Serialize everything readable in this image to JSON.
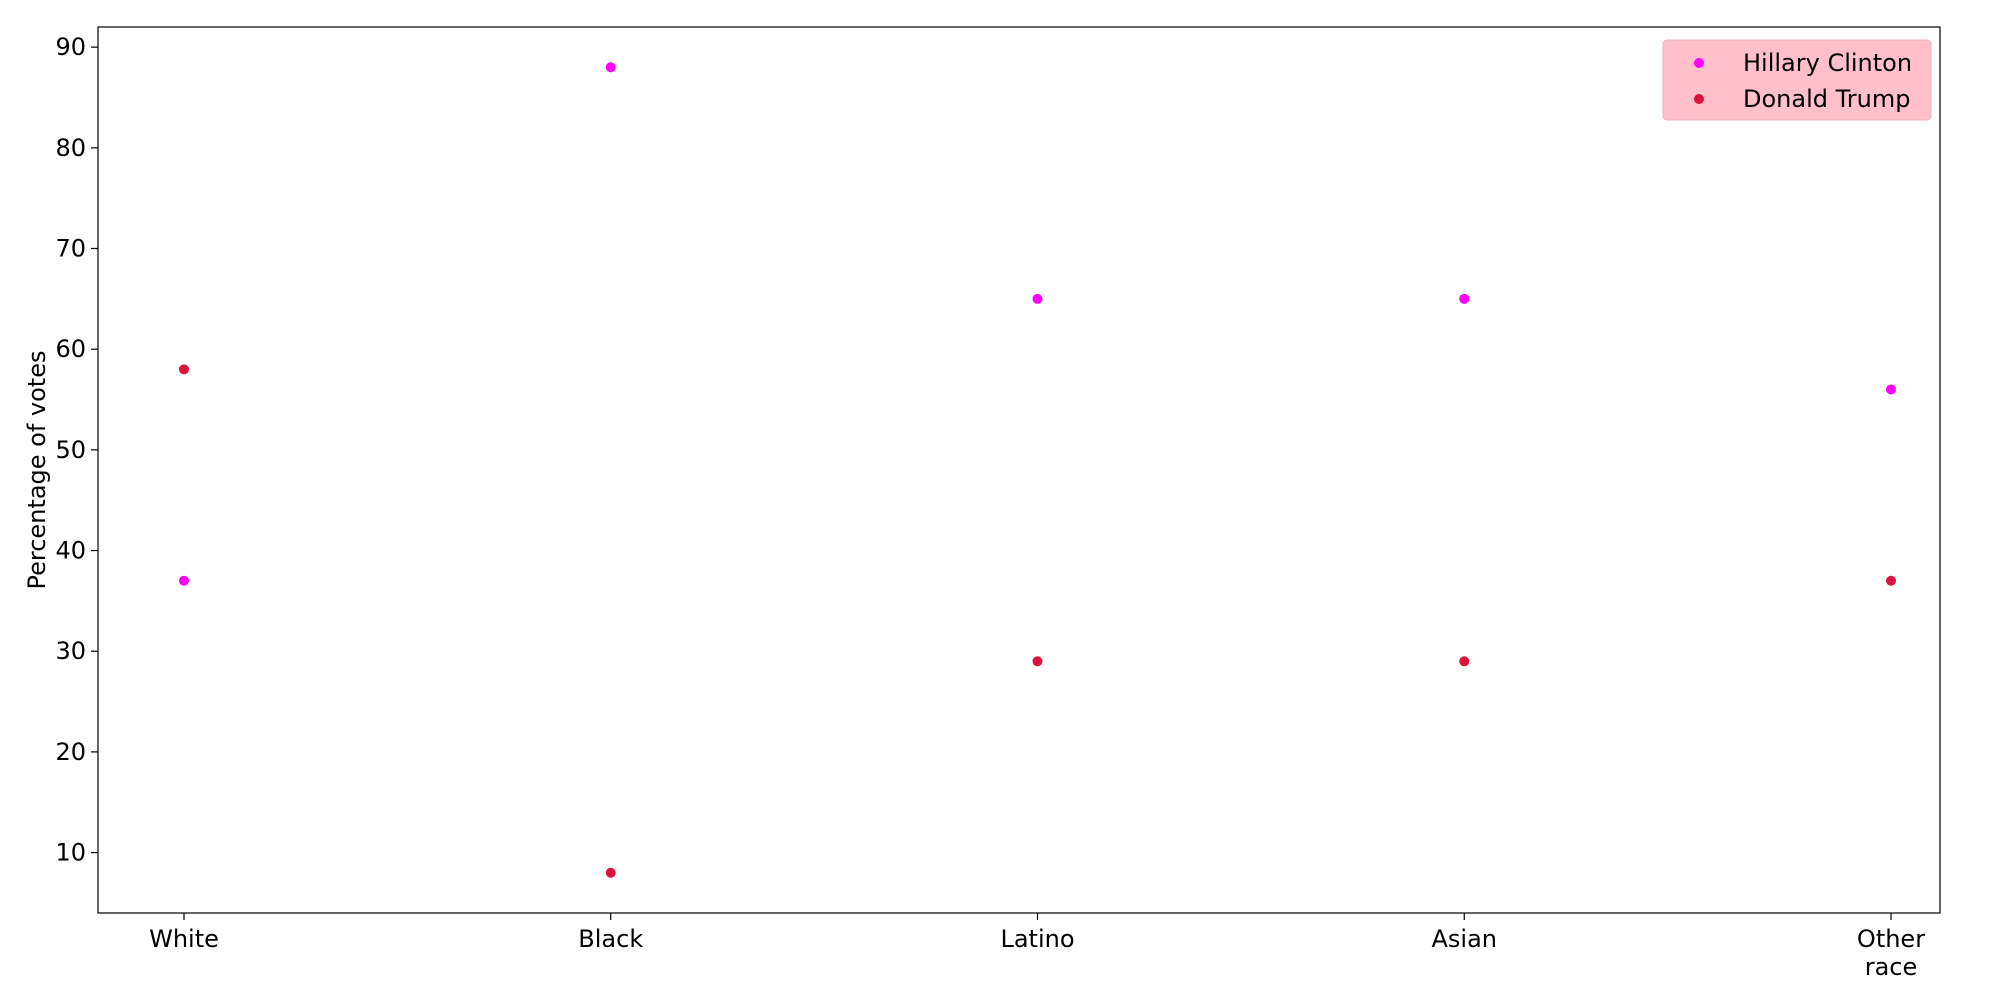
{
  "chart_data": {
    "type": "scatter",
    "categories": [
      "White",
      "Black",
      "Latino",
      "Asian",
      "Other race"
    ],
    "series": [
      {
        "name": "Hillary Clinton",
        "color": "#ff00ff",
        "values": [
          37,
          88,
          65,
          65,
          56
        ]
      },
      {
        "name": "Donald Trump",
        "color": "#dc143c",
        "values": [
          58,
          8,
          29,
          29,
          37
        ]
      }
    ],
    "title": "",
    "xlabel": "",
    "ylabel": "Percentage of votes",
    "ylim": [
      4.0,
      92.0
    ],
    "yticks": [
      10,
      20,
      30,
      40,
      50,
      60,
      70,
      80,
      90
    ],
    "grid": false,
    "legend_position": "top-right",
    "legend_background": "#ffc0cb"
  }
}
